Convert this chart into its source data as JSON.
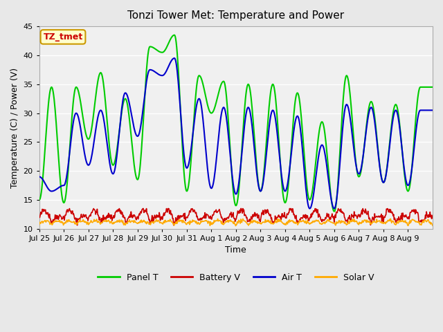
{
  "title": "Tonzi Tower Met: Temperature and Power",
  "ylabel": "Temperature (C) / Power (V)",
  "xlabel": "Time",
  "annotation_text": "TZ_tmet",
  "annotation_color": "#cc0000",
  "annotation_bg": "#ffffcc",
  "annotation_border": "#cc9900",
  "ylim": [
    10,
    45
  ],
  "yticks": [
    10,
    15,
    20,
    25,
    30,
    35,
    40,
    45
  ],
  "bg_color": "#e8e8e8",
  "plot_bg": "#f0f0f0",
  "grid_color": "#ffffff",
  "colors": {
    "panel_t": "#00cc00",
    "battery_v": "#cc0000",
    "air_t": "#0000cc",
    "solar_v": "#ffaa00"
  },
  "x_labels": [
    "Jul 25",
    "Jul 26",
    "Jul 27",
    "Jul 28",
    "Jul 29",
    "Jul 30",
    "Jul 31",
    "Aug 1",
    "Aug 2",
    "Aug 3",
    "Aug 4",
    "Aug 5",
    "Aug 6",
    "Aug 7",
    "Aug 8",
    "Aug 9"
  ],
  "n_days": 16,
  "panel_t_peaks": [
    15.0,
    34.5,
    14.5,
    34.5,
    25.5,
    37.0,
    21.0,
    32.5,
    18.5,
    41.5,
    40.5,
    43.5,
    16.5,
    36.5,
    30.0,
    35.5,
    14.0,
    35.0,
    16.5,
    35.0,
    14.5,
    33.5,
    15.0,
    28.5,
    13.0,
    36.5,
    19.0,
    32.0,
    18.0,
    31.5,
    16.5,
    34.5
  ],
  "air_t_peaks": [
    19.0,
    16.5,
    17.5,
    30.0,
    21.0,
    30.5,
    19.5,
    33.5,
    26.0,
    37.5,
    36.5,
    39.5,
    20.5,
    32.5,
    17.0,
    31.0,
    16.0,
    31.0,
    16.5,
    30.5,
    16.5,
    29.5,
    13.5,
    24.5,
    13.5,
    31.5,
    19.5,
    31.0,
    18.0,
    30.5,
    17.5,
    30.5
  ],
  "battery_base": 11.5,
  "battery_amp": 1.2,
  "solar_base": 10.8,
  "solar_amp": 0.8,
  "lw_main": 1.5,
  "lw_small": 1.2
}
